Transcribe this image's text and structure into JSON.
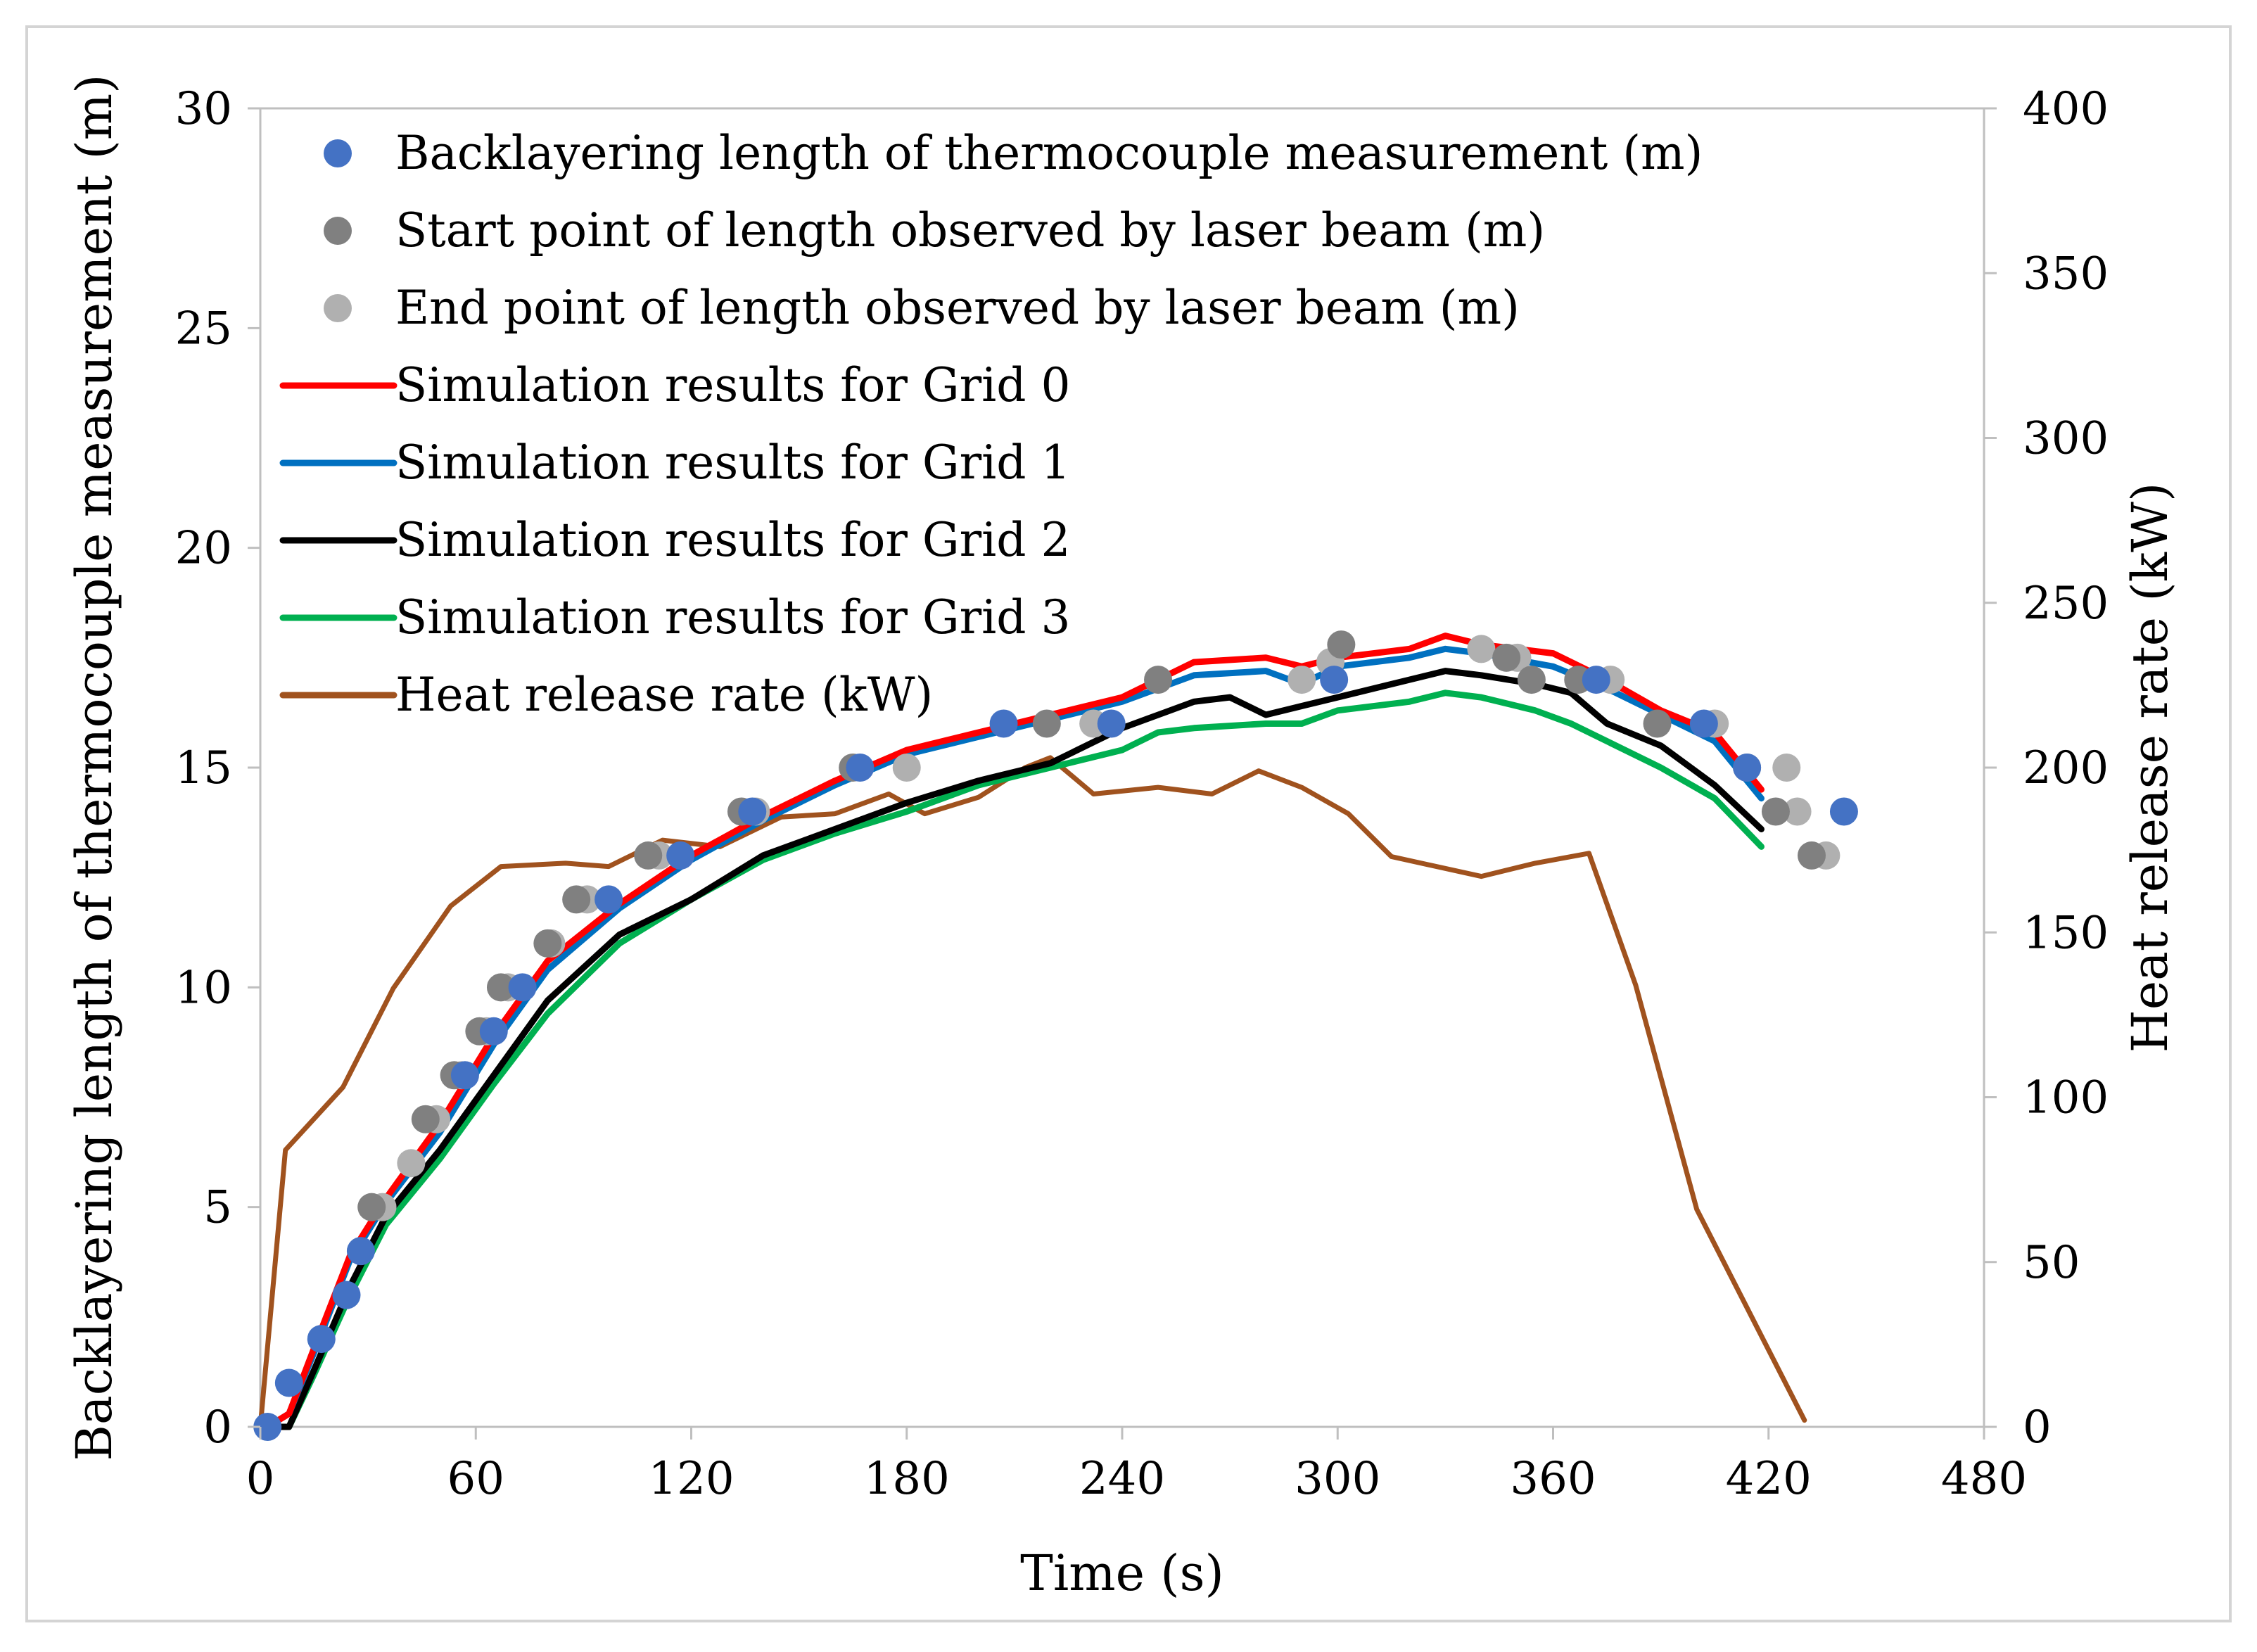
{
  "chart_data": {
    "type": "line",
    "title": "",
    "xlabel": "Time (s)",
    "ylabel": "Backlayering length of thermocouple measurement (m)",
    "y2label": "Heat release rate (kW)",
    "xlim": [
      0,
      480
    ],
    "ylim": [
      0,
      30
    ],
    "y2lim": [
      0,
      400
    ],
    "xticks": [
      "0",
      "60",
      "120",
      "180",
      "240",
      "300",
      "360",
      "420",
      "480"
    ],
    "yticks": [
      "0",
      "5",
      "10",
      "15",
      "20",
      "25",
      "30"
    ],
    "y2ticks": [
      "0",
      "50",
      "100",
      "150",
      "200",
      "250",
      "300",
      "350",
      "400"
    ],
    "grid": false,
    "legend_position": "top-left",
    "colors": {
      "measurement": "#4472c4",
      "laser_start": "#808080",
      "laser_end": "#b0b0b0",
      "grid0": "#ff0000",
      "grid1": "#0070c0",
      "grid2": "#000000",
      "grid3": "#00b050",
      "hrr": "#a0521e"
    },
    "series": [
      {
        "key": "measurement",
        "name": "Backlayering length of thermocouple measurement (m)",
        "kind": "scatter",
        "axis": "left",
        "x": [
          2,
          8,
          17,
          24,
          28,
          57,
          65,
          73,
          97,
          117,
          137,
          167,
          207,
          237,
          299,
          372,
          402,
          414,
          441
        ],
        "y": [
          0,
          1,
          2,
          3,
          4,
          8,
          9,
          10,
          12,
          13,
          14,
          15,
          16,
          16,
          17,
          17,
          16,
          15,
          14
        ]
      },
      {
        "key": "laser_start",
        "name": "Start point of length observed by laser beam (m)",
        "kind": "scatter",
        "axis": "left",
        "x": [
          31,
          46,
          54,
          61,
          67,
          80,
          88,
          108,
          134,
          165,
          219,
          250,
          301,
          347,
          354,
          367,
          389,
          414,
          422,
          432
        ],
        "y": [
          5,
          7,
          8,
          9,
          10,
          11,
          12,
          13,
          14,
          15,
          16,
          17,
          17.8,
          17.5,
          17,
          17,
          16,
          15,
          14,
          13
        ]
      },
      {
        "key": "laser_end",
        "name": "End point of length observed by laser beam (m)",
        "kind": "scatter",
        "axis": "left",
        "x": [
          34,
          42,
          49,
          56,
          63,
          69,
          81,
          91,
          111,
          138,
          180,
          232,
          290,
          298,
          340,
          350,
          376,
          405,
          425,
          428,
          436
        ],
        "y": [
          5,
          6,
          7,
          8,
          9,
          10,
          11,
          12,
          13,
          14,
          15,
          16,
          17,
          17.4,
          17.7,
          17.5,
          17,
          16,
          15,
          14,
          13
        ]
      },
      {
        "key": "grid0",
        "name": "Simulation results for Grid 0",
        "kind": "line",
        "axis": "left",
        "x": [
          2,
          8,
          15,
          25,
          35,
          50,
          65,
          80,
          100,
          120,
          140,
          160,
          180,
          200,
          220,
          240,
          260,
          280,
          290,
          300,
          320,
          330,
          340,
          360,
          375,
          390,
          405,
          418
        ],
        "y": [
          0,
          0.3,
          1.8,
          3.9,
          5.2,
          6.9,
          8.9,
          10.6,
          11.9,
          13.0,
          13.9,
          14.7,
          15.4,
          15.8,
          16.2,
          16.6,
          17.4,
          17.5,
          17.3,
          17.5,
          17.7,
          18.0,
          17.8,
          17.6,
          17.0,
          16.3,
          15.8,
          14.5
        ]
      },
      {
        "key": "grid1",
        "name": "Simulation results for Grid 1",
        "kind": "line",
        "axis": "left",
        "x": [
          2,
          8,
          15,
          25,
          35,
          50,
          65,
          80,
          100,
          120,
          140,
          160,
          180,
          200,
          220,
          240,
          260,
          280,
          290,
          300,
          320,
          330,
          340,
          360,
          375,
          390,
          405,
          418
        ],
        "y": [
          0,
          0.3,
          1.7,
          3.8,
          5.1,
          6.7,
          8.7,
          10.4,
          11.8,
          12.9,
          13.8,
          14.6,
          15.3,
          15.7,
          16.1,
          16.5,
          17.1,
          17.2,
          16.9,
          17.3,
          17.5,
          17.7,
          17.6,
          17.3,
          16.8,
          16.2,
          15.6,
          14.3
        ]
      },
      {
        "key": "grid2",
        "name": "Simulation results for Grid 2",
        "kind": "line",
        "axis": "left",
        "x": [
          2,
          8,
          15,
          25,
          35,
          50,
          65,
          80,
          100,
          120,
          140,
          160,
          180,
          200,
          220,
          240,
          260,
          270,
          280,
          290,
          300,
          320,
          330,
          340,
          355,
          365,
          375,
          390,
          405,
          418
        ],
        "y": [
          0,
          0,
          1.3,
          3.2,
          4.8,
          6.3,
          8.0,
          9.7,
          11.2,
          12.0,
          13.0,
          13.6,
          14.2,
          14.7,
          15.1,
          15.9,
          16.5,
          16.6,
          16.2,
          16.4,
          16.6,
          17.0,
          17.2,
          17.1,
          16.9,
          16.7,
          16.0,
          15.5,
          14.6,
          13.6
        ]
      },
      {
        "key": "grid3",
        "name": "Simulation results for Grid 3",
        "kind": "line",
        "axis": "left",
        "x": [
          2,
          8,
          15,
          25,
          35,
          50,
          65,
          80,
          100,
          120,
          140,
          160,
          180,
          200,
          220,
          240,
          250,
          260,
          280,
          290,
          300,
          320,
          330,
          340,
          355,
          365,
          375,
          390,
          405,
          418
        ],
        "y": [
          0,
          0,
          1.2,
          3.0,
          4.6,
          6.1,
          7.8,
          9.4,
          11.0,
          12.0,
          12.9,
          13.5,
          14.0,
          14.6,
          15.0,
          15.4,
          15.8,
          15.9,
          16.0,
          16.0,
          16.3,
          16.5,
          16.7,
          16.6,
          16.3,
          16.0,
          15.6,
          15.0,
          14.3,
          13.2
        ]
      },
      {
        "key": "hrr",
        "name": "Heat release rate (kW)",
        "kind": "line",
        "axis": "right",
        "x": [
          0,
          7,
          23,
          37,
          53,
          67,
          85,
          97,
          112,
          128,
          145,
          160,
          175,
          185,
          200,
          213,
          220,
          232,
          250,
          265,
          278,
          290,
          303,
          315,
          340,
          355,
          370,
          383,
          400,
          430
        ],
        "y": [
          0,
          84,
          103,
          133,
          158,
          170,
          171,
          170,
          178,
          176,
          185,
          186,
          192,
          186,
          191,
          200,
          203,
          192,
          194,
          192,
          199,
          194,
          186,
          173,
          167,
          171,
          174,
          134,
          66,
          2
        ]
      }
    ]
  }
}
